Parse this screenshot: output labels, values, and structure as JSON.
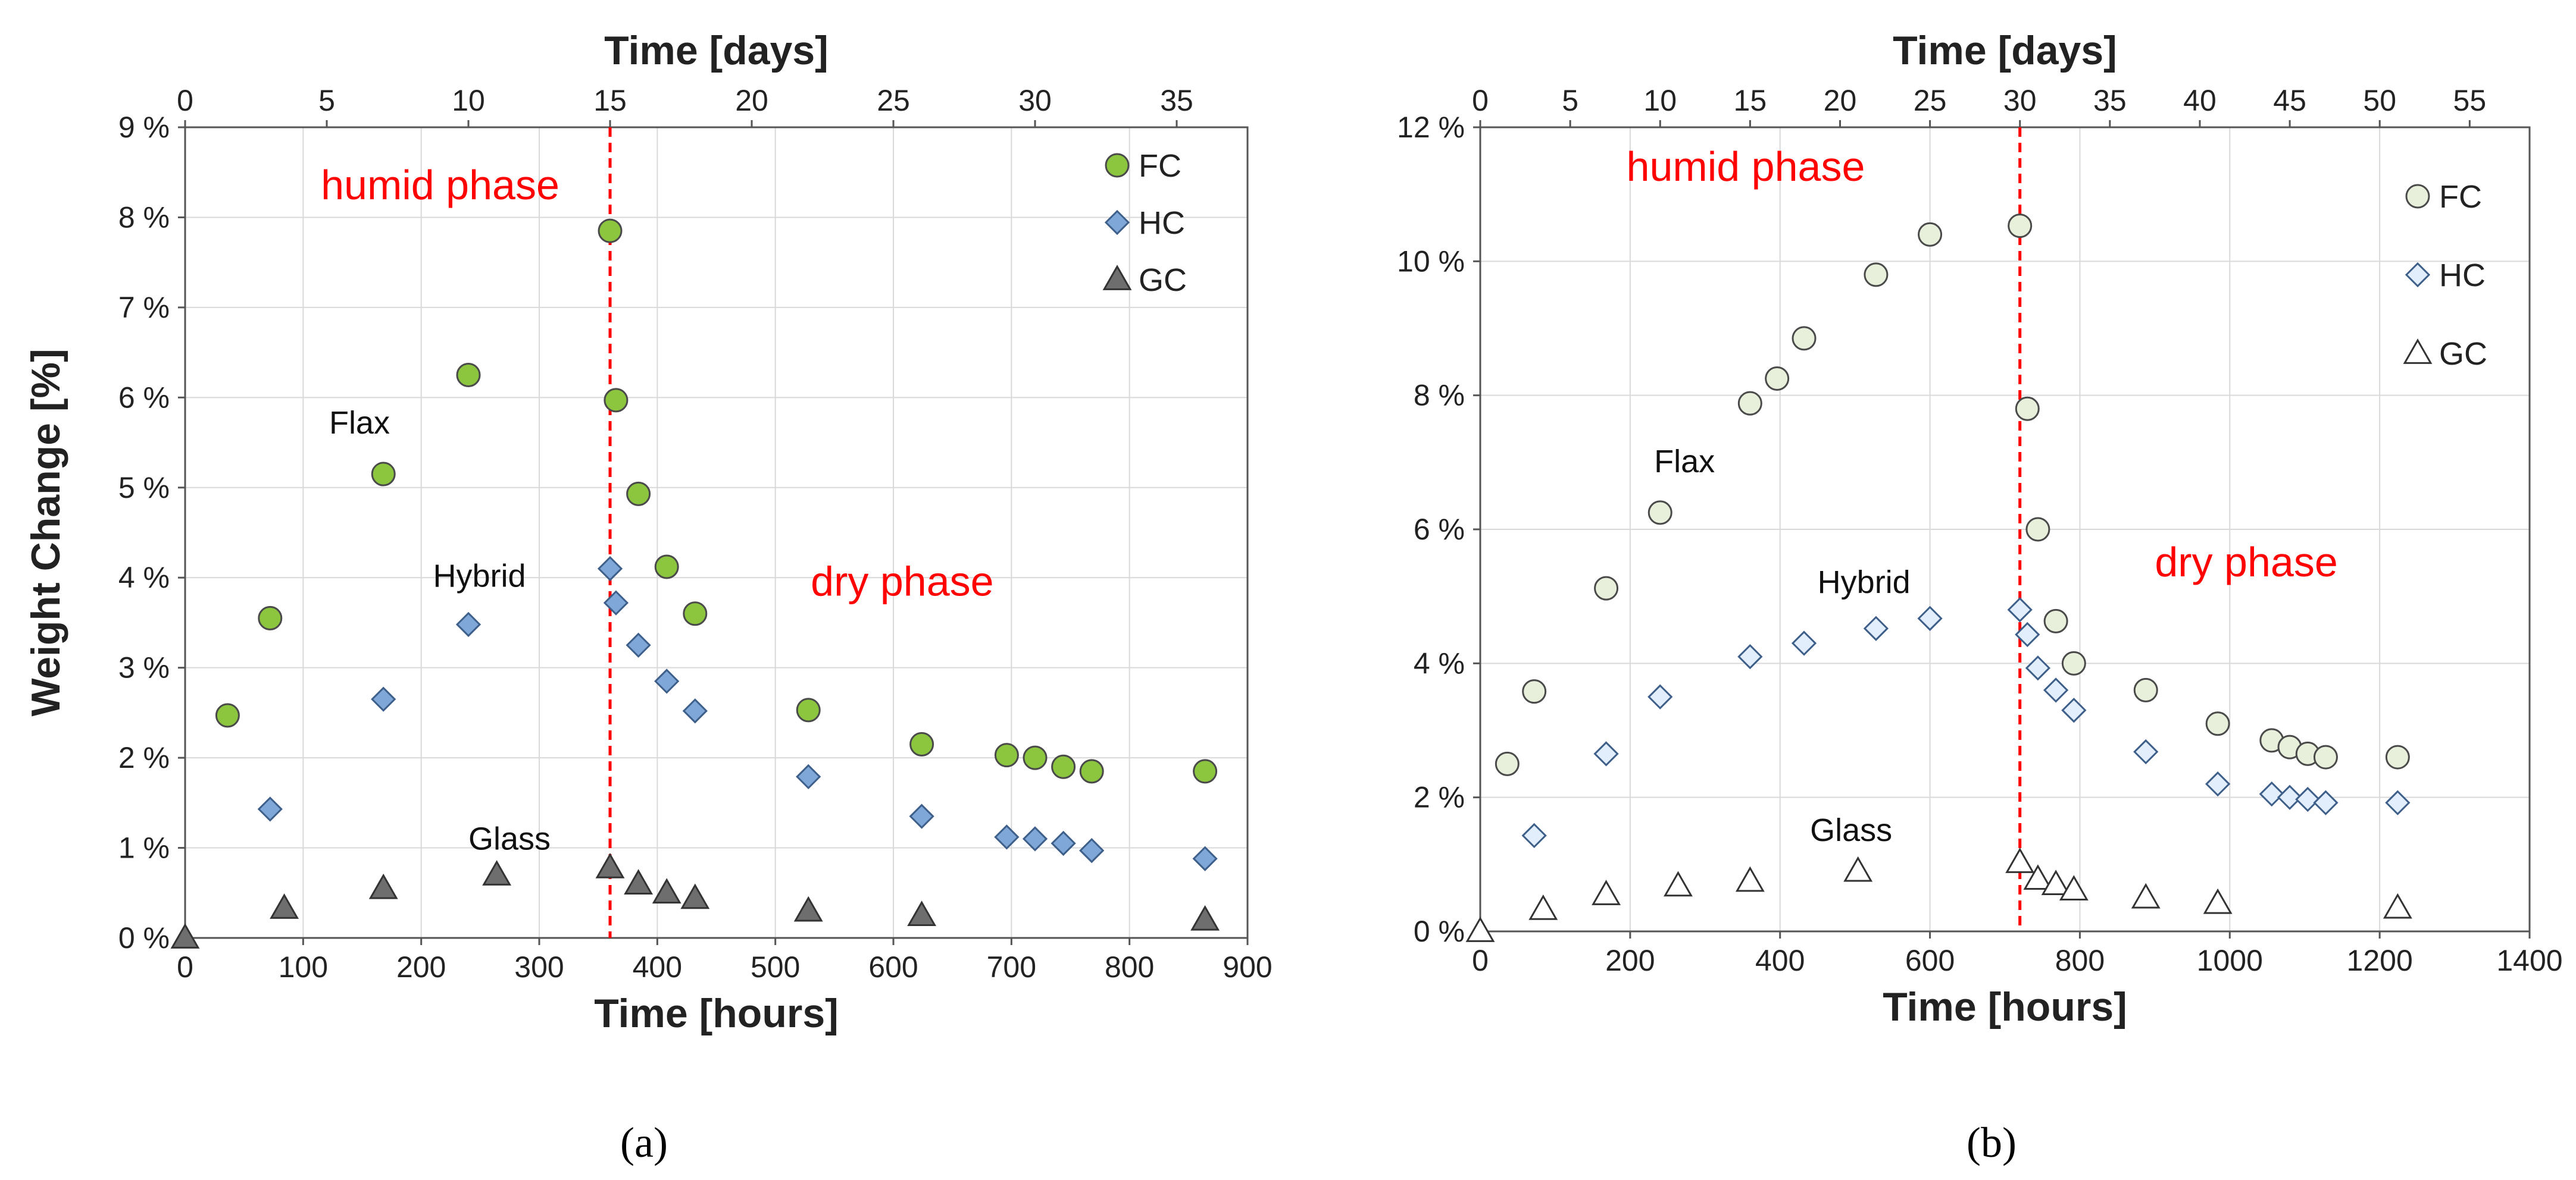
{
  "chart_data": [
    {
      "type": "scatter",
      "panel_label": "(a)",
      "xlabel": "Time [hours]",
      "x2label": "Time [days]",
      "ylabel": "Weight Change [%]",
      "xlim": [
        0,
        900
      ],
      "x2lim": [
        0,
        37.5
      ],
      "ylim": [
        0,
        9
      ],
      "xticks": [
        0,
        100,
        200,
        300,
        400,
        500,
        600,
        700,
        800,
        900
      ],
      "x2ticks": [
        0,
        5,
        10,
        15,
        20,
        25,
        30,
        35
      ],
      "yticks": [
        0,
        1,
        2,
        3,
        4,
        5,
        6,
        7,
        8,
        9
      ],
      "ytick_labels": [
        "0 %",
        "1 %",
        "2 %",
        "3 %",
        "4 %",
        "5 %",
        "6 %",
        "7 %",
        "8 %",
        "9 %"
      ],
      "grid": true,
      "legend_position": "top-right",
      "marker_fill": "solid",
      "divider_x": 360,
      "series": [
        {
          "name": "FC",
          "marker": "circle",
          "color": "#8cc63f",
          "x": [
            36,
            72,
            168,
            240,
            360,
            365,
            384,
            408,
            432,
            528,
            624,
            696,
            720,
            744,
            768,
            864
          ],
          "y": [
            2.47,
            3.55,
            5.15,
            6.25,
            7.85,
            5.97,
            4.93,
            4.12,
            3.6,
            2.53,
            2.15,
            2.03,
            2.0,
            1.9,
            1.85,
            1.85
          ]
        },
        {
          "name": "HC",
          "marker": "diamond",
          "color": "#7fa7d8",
          "x": [
            72,
            168,
            240,
            360,
            365,
            384,
            408,
            432,
            528,
            624,
            696,
            720,
            744,
            768,
            864
          ],
          "y": [
            1.43,
            2.65,
            3.48,
            4.1,
            3.72,
            3.25,
            2.85,
            2.52,
            1.79,
            1.35,
            1.12,
            1.1,
            1.05,
            0.97,
            0.88
          ]
        },
        {
          "name": "GC",
          "marker": "triangle",
          "color": "#6e6e6e",
          "x": [
            0,
            84,
            168,
            264,
            360,
            384,
            408,
            432,
            528,
            624,
            864
          ],
          "y": [
            0.0,
            0.33,
            0.55,
            0.7,
            0.78,
            0.6,
            0.5,
            0.44,
            0.3,
            0.25,
            0.2
          ]
        }
      ],
      "annotations": [
        {
          "text": "humid phase",
          "kind": "phase",
          "x": 115,
          "y": 8.2
        },
        {
          "text": "dry phase",
          "kind": "phase",
          "x": 530,
          "y": 3.8
        },
        {
          "text": "Flax",
          "kind": "label",
          "x": 122,
          "y": 5.6
        },
        {
          "text": "Hybrid",
          "kind": "label",
          "x": 210,
          "y": 3.9
        },
        {
          "text": "Glass",
          "kind": "label",
          "x": 240,
          "y": 0.98
        }
      ]
    },
    {
      "type": "scatter",
      "panel_label": "(b)",
      "xlabel": "Time [hours]",
      "x2label": "Time [days]",
      "ylabel": "",
      "xlim": [
        0,
        1400
      ],
      "x2lim": [
        0,
        58.33
      ],
      "ylim": [
        0,
        12
      ],
      "xticks": [
        0,
        200,
        400,
        600,
        800,
        1000,
        1200,
        1400
      ],
      "x2ticks": [
        0,
        5,
        10,
        15,
        20,
        25,
        30,
        35,
        40,
        45,
        50,
        55
      ],
      "yticks": [
        0,
        2,
        4,
        6,
        8,
        10,
        12
      ],
      "ytick_labels": [
        "0 %",
        "2 %",
        "4 %",
        "6 %",
        "8 %",
        "10 %",
        "12 %"
      ],
      "grid": true,
      "legend_position": "top-right",
      "marker_fill": "hollow",
      "divider_x": 720,
      "series": [
        {
          "name": "FC",
          "marker": "circle",
          "color": "#e8f0dc",
          "x": [
            36,
            72,
            168,
            240,
            360,
            396,
            432,
            528,
            600,
            720,
            730,
            744,
            768,
            792,
            888,
            984,
            1056,
            1080,
            1104,
            1128,
            1224
          ],
          "y": [
            2.5,
            3.58,
            5.12,
            6.25,
            7.88,
            8.25,
            8.85,
            9.8,
            10.4,
            10.53,
            7.8,
            6.0,
            4.63,
            4.0,
            3.6,
            3.1,
            2.85,
            2.75,
            2.65,
            2.6,
            2.6
          ]
        },
        {
          "name": "HC",
          "marker": "diamond",
          "color": "#e2eefb",
          "x": [
            72,
            168,
            240,
            360,
            432,
            528,
            600,
            720,
            730,
            744,
            768,
            792,
            888,
            984,
            1056,
            1080,
            1104,
            1128,
            1224
          ],
          "y": [
            1.43,
            2.65,
            3.5,
            4.1,
            4.3,
            4.52,
            4.67,
            4.8,
            4.43,
            3.93,
            3.6,
            3.3,
            2.68,
            2.2,
            2.05,
            2.0,
            1.97,
            1.92,
            1.92
          ]
        },
        {
          "name": "GC",
          "marker": "triangle",
          "color": "#ffffff",
          "x": [
            0,
            84,
            168,
            264,
            360,
            504,
            720,
            744,
            768,
            792,
            888,
            984,
            1224
          ],
          "y": [
            0.0,
            0.33,
            0.55,
            0.68,
            0.75,
            0.9,
            1.03,
            0.78,
            0.7,
            0.62,
            0.5,
            0.42,
            0.35
          ]
        }
      ],
      "annotations": [
        {
          "text": "humid phase",
          "kind": "phase",
          "x": 195,
          "y": 11.2
        },
        {
          "text": "dry phase",
          "kind": "phase",
          "x": 900,
          "y": 5.3
        },
        {
          "text": "Flax",
          "kind": "label",
          "x": 232,
          "y": 6.85
        },
        {
          "text": "Hybrid",
          "kind": "label",
          "x": 450,
          "y": 5.05
        },
        {
          "text": "Glass",
          "kind": "label",
          "x": 440,
          "y": 1.35
        }
      ]
    }
  ]
}
